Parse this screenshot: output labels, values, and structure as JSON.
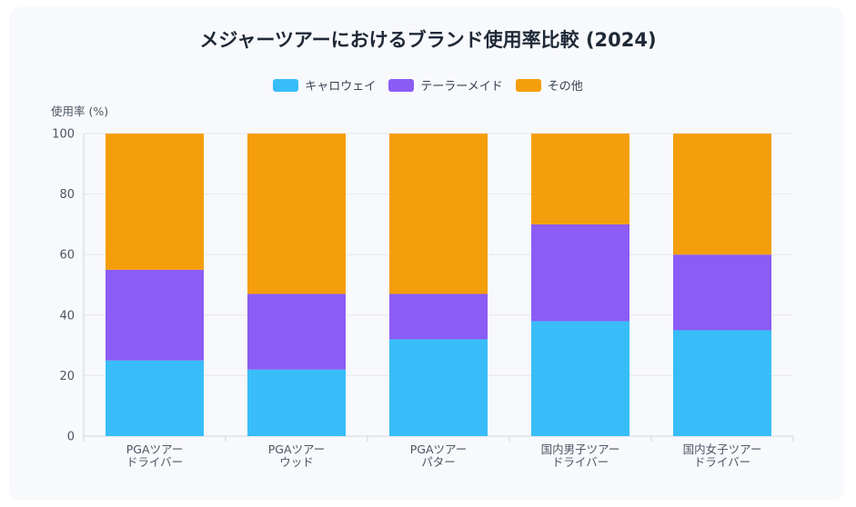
{
  "chart_data": {
    "type": "bar",
    "stacked": true,
    "title": "メジャーツアーにおけるブランド使用率比較 (2024)",
    "ylabel": "使用率 (%)",
    "xlabel": "",
    "ylim": [
      0,
      100
    ],
    "yticks": [
      0,
      20,
      40,
      60,
      80,
      100
    ],
    "grid": true,
    "legend_position": "top-center",
    "categories": [
      [
        "PGAツアー",
        "ドライバー"
      ],
      [
        "PGAツアー",
        "ウッド"
      ],
      [
        "PGAツアー",
        "パター"
      ],
      [
        "国内男子ツアー",
        "ドライバー"
      ],
      [
        "国内女子ツアー",
        "ドライバー"
      ]
    ],
    "series": [
      {
        "name": "キャロウェイ",
        "color": "#38bdf8",
        "values": [
          25,
          22,
          32,
          38,
          35
        ]
      },
      {
        "name": "テーラーメイド",
        "color": "#8b5cf6",
        "values": [
          30,
          25,
          15,
          32,
          25
        ]
      },
      {
        "name": "その他",
        "color": "#f59e0b",
        "values": [
          45,
          53,
          53,
          30,
          40
        ]
      }
    ]
  }
}
